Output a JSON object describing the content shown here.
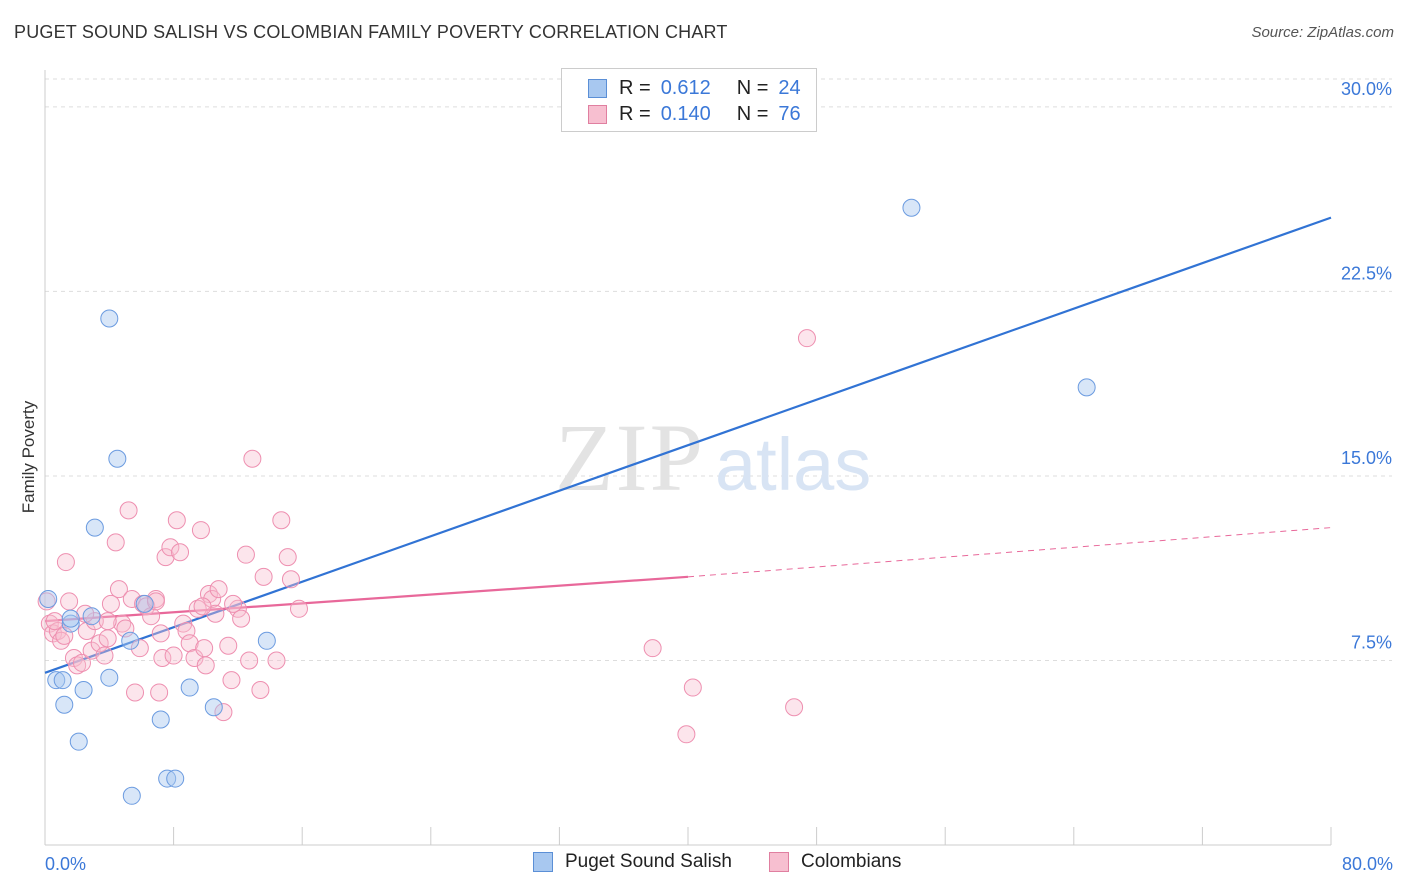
{
  "chart_title": "PUGET SOUND SALISH VS COLOMBIAN FAMILY POVERTY CORRELATION CHART",
  "source": "Source: ZipAtlas.com",
  "watermark": {
    "zip": "ZIP",
    "atlas": "atlas"
  },
  "legend": {
    "r_label": "R =",
    "n_label": "N =",
    "rows": [
      {
        "name": "Puget Sound Salish",
        "r": "0.612",
        "n": "24",
        "fill": "#a8c8f0",
        "stroke": "#5b8fd6"
      },
      {
        "name": "Colombians",
        "r": "0.140",
        "n": "76",
        "fill": "#f7bfd0",
        "stroke": "#e07fa0"
      }
    ]
  },
  "chart_data": {
    "type": "scatter",
    "title": "PUGET SOUND SALISH VS COLOMBIAN FAMILY POVERTY CORRELATION CHART",
    "xlabel": "",
    "ylabel": "Family Poverty",
    "xlim": [
      0,
      80
    ],
    "ylim": [
      0,
      31.5
    ],
    "x_tick_labels": [
      "0.0%",
      "80.0%"
    ],
    "y_ticks": [
      7.5,
      15.0,
      22.5,
      30.0
    ],
    "y_tick_labels": [
      "7.5%",
      "15.0%",
      "22.5%",
      "30.0%"
    ],
    "colors": {
      "blue": "#3173d4",
      "pink": "#e8689a",
      "grid": "#dddddd",
      "axis": "#cccccc",
      "tick_text": "#3b78d8"
    },
    "series": [
      {
        "name": "Puget Sound Salish",
        "color": "#6b9be0",
        "points": [
          [
            0.2,
            10.0
          ],
          [
            0.7,
            6.7
          ],
          [
            1.1,
            6.7
          ],
          [
            1.2,
            5.7
          ],
          [
            1.6,
            9.0
          ],
          [
            1.6,
            9.2
          ],
          [
            2.1,
            4.2
          ],
          [
            2.4,
            6.3
          ],
          [
            2.9,
            9.3
          ],
          [
            3.1,
            12.9
          ],
          [
            4.0,
            6.8
          ],
          [
            4.5,
            15.7
          ],
          [
            5.3,
            8.3
          ],
          [
            5.4,
            2.0
          ],
          [
            6.2,
            9.8
          ],
          [
            7.2,
            5.1
          ],
          [
            7.6,
            2.7
          ],
          [
            8.1,
            2.7
          ],
          [
            9.0,
            6.4
          ],
          [
            10.5,
            5.6
          ],
          [
            13.8,
            8.3
          ],
          [
            4.0,
            21.4
          ],
          [
            53.9,
            25.9
          ],
          [
            64.8,
            18.6
          ]
        ],
        "trend": {
          "x": [
            0,
            80
          ],
          "y": [
            7.0,
            25.5
          ]
        }
      },
      {
        "name": "Colombians",
        "color": "#ee8fb0",
        "points": [
          [
            0.1,
            9.9
          ],
          [
            0.3,
            9.0
          ],
          [
            0.5,
            8.6
          ],
          [
            0.8,
            8.7
          ],
          [
            1.0,
            8.3
          ],
          [
            1.2,
            8.5
          ],
          [
            1.3,
            11.5
          ],
          [
            1.5,
            9.9
          ],
          [
            1.8,
            7.6
          ],
          [
            2.0,
            7.3
          ],
          [
            2.3,
            7.4
          ],
          [
            2.6,
            8.7
          ],
          [
            2.9,
            7.9
          ],
          [
            3.1,
            9.1
          ],
          [
            3.4,
            8.2
          ],
          [
            3.7,
            7.7
          ],
          [
            3.9,
            8.4
          ],
          [
            4.1,
            9.8
          ],
          [
            4.4,
            12.3
          ],
          [
            4.6,
            10.4
          ],
          [
            4.8,
            9.0
          ],
          [
            5.0,
            8.8
          ],
          [
            5.2,
            13.6
          ],
          [
            5.4,
            10.0
          ],
          [
            5.6,
            6.2
          ],
          [
            5.9,
            8.0
          ],
          [
            6.1,
            9.8
          ],
          [
            6.3,
            9.7
          ],
          [
            6.6,
            9.3
          ],
          [
            6.9,
            10.0
          ],
          [
            7.1,
            6.2
          ],
          [
            7.3,
            7.6
          ],
          [
            7.5,
            11.7
          ],
          [
            7.8,
            12.1
          ],
          [
            8.0,
            7.7
          ],
          [
            8.2,
            13.2
          ],
          [
            8.4,
            11.9
          ],
          [
            8.6,
            9.0
          ],
          [
            8.8,
            8.7
          ],
          [
            9.0,
            8.2
          ],
          [
            9.3,
            7.6
          ],
          [
            9.5,
            9.6
          ],
          [
            9.7,
            12.8
          ],
          [
            9.9,
            8.0
          ],
          [
            10.0,
            7.3
          ],
          [
            10.2,
            10.2
          ],
          [
            10.4,
            10.0
          ],
          [
            10.6,
            9.4
          ],
          [
            10.8,
            10.4
          ],
          [
            11.1,
            5.4
          ],
          [
            11.4,
            8.1
          ],
          [
            11.6,
            6.7
          ],
          [
            12.0,
            9.6
          ],
          [
            12.2,
            9.2
          ],
          [
            12.5,
            11.8
          ],
          [
            12.7,
            7.5
          ],
          [
            12.9,
            15.7
          ],
          [
            13.4,
            6.3
          ],
          [
            13.6,
            10.9
          ],
          [
            14.4,
            7.5
          ],
          [
            14.7,
            13.2
          ],
          [
            15.1,
            11.7
          ],
          [
            15.3,
            10.8
          ],
          [
            15.8,
            9.6
          ],
          [
            37.8,
            8.0
          ],
          [
            39.9,
            4.5
          ],
          [
            40.3,
            6.4
          ],
          [
            46.6,
            5.6
          ],
          [
            47.4,
            20.6
          ],
          [
            3.9,
            9.1
          ],
          [
            6.9,
            9.9
          ],
          [
            9.8,
            9.7
          ],
          [
            11.7,
            9.8
          ],
          [
            2.5,
            9.4
          ],
          [
            7.2,
            8.6
          ],
          [
            0.6,
            9.1
          ]
        ],
        "trend": {
          "x": [
            0,
            40
          ],
          "y": [
            9.1,
            10.9
          ]
        },
        "trend_extension": {
          "x": [
            40,
            80
          ],
          "y": [
            10.9,
            12.9
          ]
        }
      }
    ]
  }
}
